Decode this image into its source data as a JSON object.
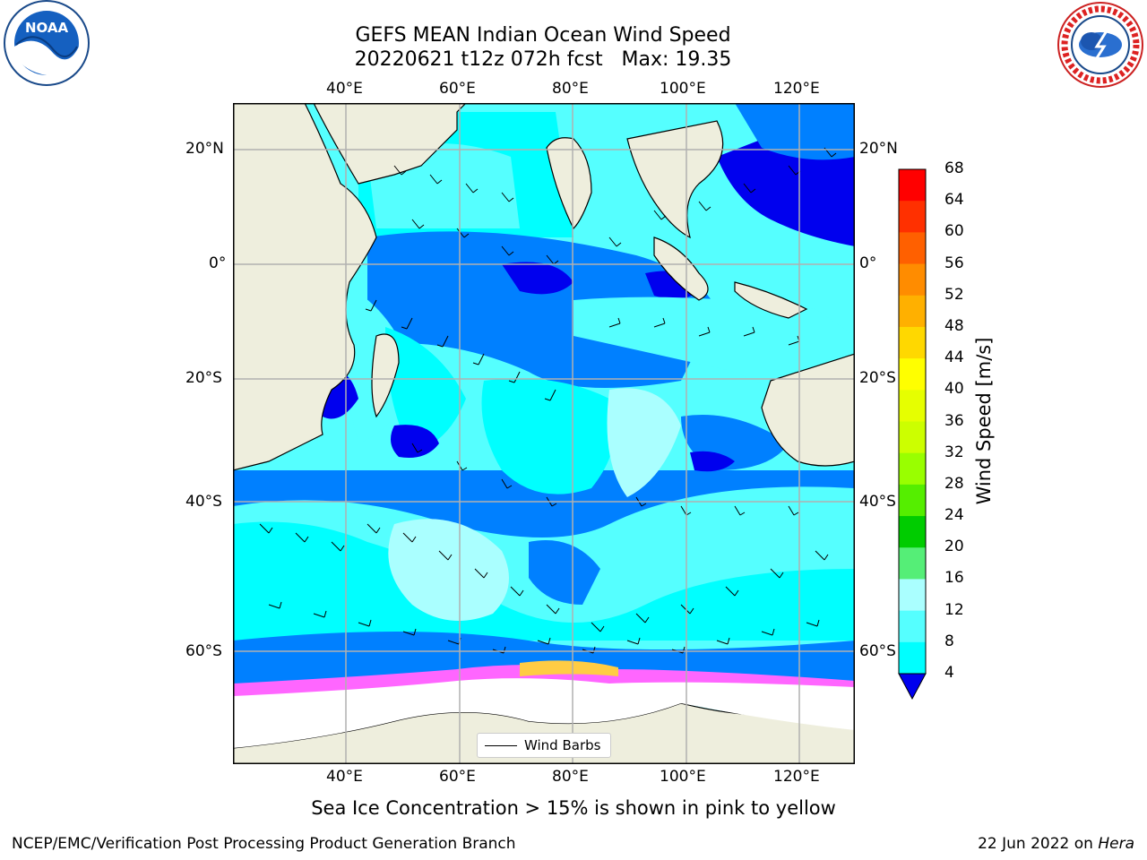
{
  "header": {
    "title_line1": "GEFS MEAN Indian Ocean Wind Speed",
    "title_line2": "20220621 t12z 072h fcst   Max: 19.35"
  },
  "logos": {
    "left": "noaa-logo",
    "right": "nws-logo",
    "right_text": "NATIONAL WEATHER SERVICE"
  },
  "map": {
    "lon_ticks": [
      "40°E",
      "60°E",
      "80°E",
      "100°E",
      "120°E"
    ],
    "lat_ticks_left": [
      "20°N",
      "0°",
      "20°S",
      "40°S",
      "60°S"
    ],
    "lat_ticks_right": [
      "20°N",
      "0°",
      "20°S",
      "40°S",
      "60°S"
    ],
    "legend_label": "Wind Barbs",
    "colors": {
      "land": "#eeeedd",
      "ice": "#ffffff",
      "coast": "#000000",
      "grid": "#b0b0b0"
    }
  },
  "colorbar": {
    "title": "Wind Speed [m/s]",
    "labels": [
      "68",
      "64",
      "60",
      "56",
      "52",
      "48",
      "44",
      "40",
      "36",
      "32",
      "28",
      "24",
      "20",
      "16",
      "12",
      "8",
      "4"
    ],
    "colors": [
      "#ff0000",
      "#ff3000",
      "#ff6000",
      "#ff8c00",
      "#ffb000",
      "#ffd800",
      "#ffff00",
      "#e6ff00",
      "#ccff00",
      "#99ff00",
      "#55ee00",
      "#00cc00",
      "#55ee77",
      "#aaffff",
      "#55ffff",
      "#00ffff",
      "#0080ff",
      "#0000ee"
    ]
  },
  "caption": "Sea Ice Concentration > 15% is shown in pink to yellow",
  "footer": {
    "left": "NCEP/EMC/Verification Post Processing Product Generation Branch",
    "right_date": "22 Jun 2022 on",
    "right_host": "Hera"
  }
}
